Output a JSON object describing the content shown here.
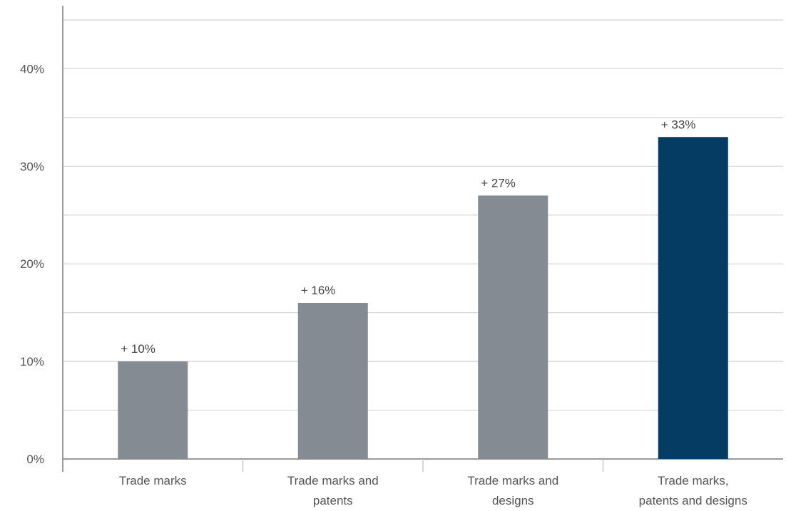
{
  "chart_data": {
    "type": "bar",
    "categories": [
      [
        "Trade marks"
      ],
      [
        "Trade marks and",
        "patents"
      ],
      [
        "Trade marks and",
        "designs"
      ],
      [
        "Trade marks,",
        "patents and designs"
      ]
    ],
    "values": [
      10,
      16,
      27,
      33
    ],
    "data_labels": [
      "+ 10%",
      "+ 16%",
      "+ 27%",
      "+ 33%"
    ],
    "y_ticks": [
      0,
      10,
      20,
      30,
      40
    ],
    "y_tick_labels": [
      "0%",
      "10%",
      "20%",
      "30%",
      "40%"
    ],
    "ylim": [
      0,
      45
    ],
    "title": "",
    "xlabel": "",
    "ylabel": "",
    "grid": true,
    "legend": "none",
    "colors": {
      "default_bar": "#858b92",
      "highlight_bar": "#053c64",
      "grid": "#d4d4d4",
      "axis": "#9a9a9a"
    },
    "highlight_index": 3
  }
}
